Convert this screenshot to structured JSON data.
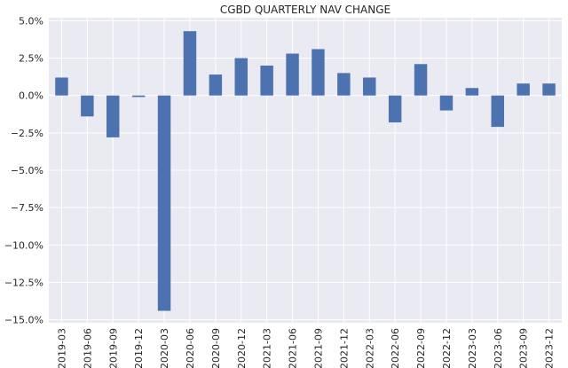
{
  "chart_data": {
    "type": "bar",
    "title": "CGBD QUARTERLY NAV CHANGE",
    "xlabel": "",
    "ylabel": "",
    "categories": [
      "2019-03",
      "2019-06",
      "2019-09",
      "2019-12",
      "2020-03",
      "2020-06",
      "2020-09",
      "2020-12",
      "2021-03",
      "2021-06",
      "2021-09",
      "2021-12",
      "2022-03",
      "2022-06",
      "2022-09",
      "2022-12",
      "2023-03",
      "2023-06",
      "2023-09",
      "2023-12"
    ],
    "values": [
      1.2,
      -1.4,
      -2.8,
      -0.1,
      -14.4,
      4.3,
      1.4,
      2.5,
      2.0,
      2.8,
      3.1,
      1.5,
      1.2,
      -1.8,
      2.1,
      -1.0,
      0.5,
      -2.1,
      0.8,
      0.8
    ],
    "ylim": [
      -15.2,
      5.2
    ],
    "yticks": [
      5.0,
      2.5,
      0.0,
      -2.5,
      -5.0,
      -7.5,
      -10.0,
      -12.5,
      -15.0
    ],
    "ytick_labels": [
      "5.0%",
      "2.5%",
      "0.0%",
      "−2.5%",
      "−5.0%",
      "−7.5%",
      "−10.0%",
      "−12.5%",
      "−15.0%"
    ],
    "grid": true,
    "legend": false,
    "colors": {
      "bar": "#4c72b0",
      "background": "#eaeaf2",
      "grid": "#ffffff"
    }
  }
}
